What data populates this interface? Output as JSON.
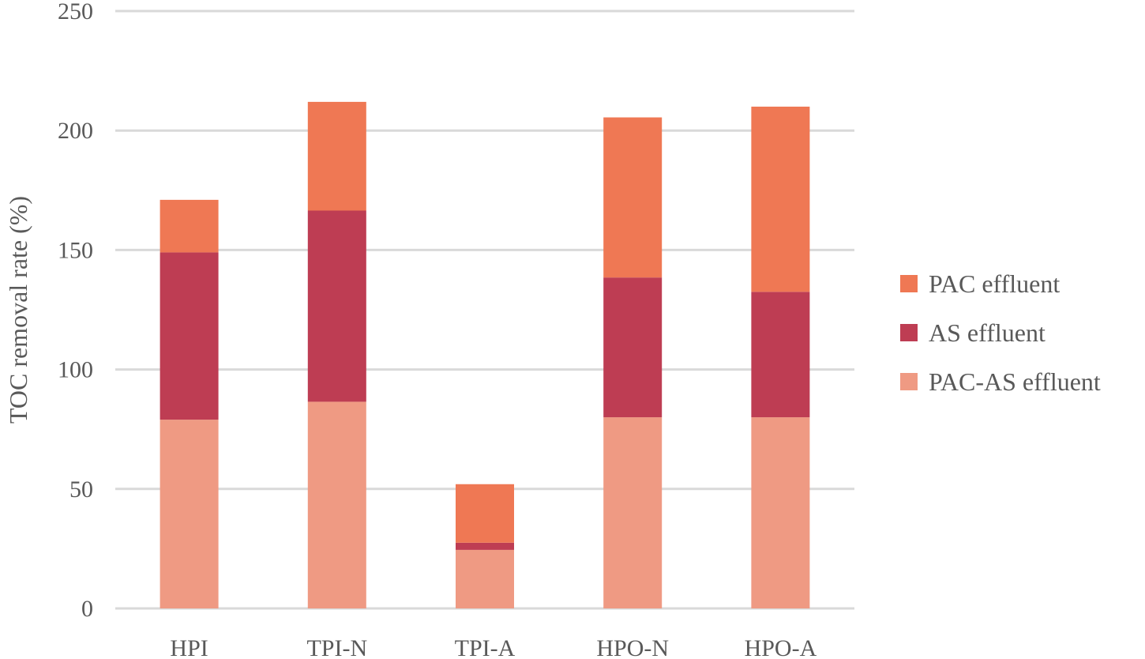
{
  "chart_data": {
    "type": "bar",
    "stacked": true,
    "title": "",
    "xlabel": "",
    "ylabel": "TOC removal rate (%)",
    "ylim": [
      0,
      250
    ],
    "yticks": [
      0,
      50,
      100,
      150,
      200,
      250
    ],
    "grid": true,
    "legend_position": "right",
    "categories": [
      "HPI",
      "TPI-N",
      "TPI-A",
      "HPO-N",
      "HPO-A"
    ],
    "series": [
      {
        "name": "PAC-AS effluent",
        "color": "#ef9a83",
        "values": [
          79,
          86.5,
          24.5,
          80,
          80
        ]
      },
      {
        "name": "AS effluent",
        "color": "#be3d53",
        "values": [
          70,
          80,
          3,
          58.5,
          52.5
        ]
      },
      {
        "name": "PAC effluent",
        "color": "#ef7854",
        "values": [
          22,
          45.5,
          24.5,
          67,
          77.5
        ]
      }
    ],
    "legend_order": [
      "PAC effluent",
      "AS effluent",
      "PAC-AS effluent"
    ]
  }
}
